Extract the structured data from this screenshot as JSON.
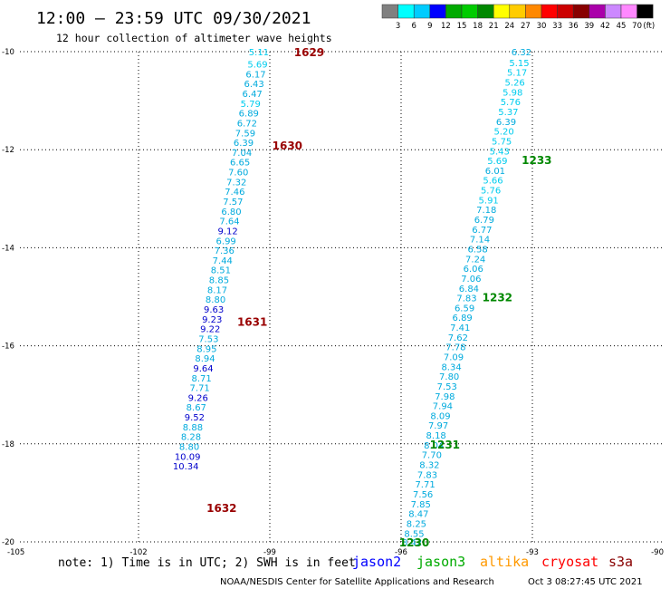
{
  "chart_data": {
    "type": "scatter",
    "title": "12:00 – 23:59 UTC 09/30/2021",
    "subtitle": "12 hour collection of altimeter wave heights",
    "xlim": [
      -105,
      -90
    ],
    "ylim": [
      -20,
      -10
    ],
    "x_ticks": [
      "-105",
      "-102",
      "-99",
      "-96",
      "-93",
      "-90"
    ],
    "y_ticks": [
      "-10",
      "-12",
      "-14",
      "-16",
      "-18",
      "-20"
    ],
    "grid": true,
    "colorbar": {
      "unit": "(ft)",
      "ticks": [
        "3",
        "6",
        "9",
        "12",
        "15",
        "18",
        "21",
        "24",
        "27",
        "30",
        "33",
        "36",
        "39",
        "42",
        "45",
        "70"
      ],
      "colors": [
        "#808080",
        "#00ffff",
        "#00ccff",
        "#0000ff",
        "#00aa00",
        "#00cc00",
        "#008800",
        "#ffff00",
        "#ffcc00",
        "#ff8800",
        "#ff0000",
        "#cc0000",
        "#880000",
        "#aa00aa",
        "#cc88ff",
        "#ff88ff",
        "#000000"
      ]
    },
    "series": [
      {
        "name": "cryosat",
        "color": "#00aadd",
        "points": [
          {
            "x": -99.25,
            "y": -10.0,
            "value": "5.11"
          },
          {
            "x": -99.28,
            "y": -10.25,
            "value": "5.69"
          },
          {
            "x": -99.32,
            "y": -10.45,
            "value": "6.17"
          },
          {
            "x": -99.36,
            "y": -10.65,
            "value": "6.43"
          },
          {
            "x": -99.4,
            "y": -10.85,
            "value": "6.47"
          },
          {
            "x": -99.44,
            "y": -11.05,
            "value": "5.79"
          },
          {
            "x": -99.48,
            "y": -11.25,
            "value": "6.89"
          },
          {
            "x": -99.52,
            "y": -11.45,
            "value": "6.72"
          },
          {
            "x": -99.56,
            "y": -11.65,
            "value": "7.59"
          },
          {
            "x": -99.6,
            "y": -11.85,
            "value": "6.39"
          },
          {
            "x": -99.64,
            "y": -12.05,
            "value": "7.04"
          },
          {
            "x": -99.68,
            "y": -12.25,
            "value": "6.65"
          },
          {
            "x": -99.72,
            "y": -12.45,
            "value": "7.60"
          },
          {
            "x": -99.76,
            "y": -12.65,
            "value": "7.32"
          },
          {
            "x": -99.8,
            "y": -12.85,
            "value": "7.46"
          },
          {
            "x": -99.84,
            "y": -13.05,
            "value": "7.57"
          },
          {
            "x": -99.88,
            "y": -13.25,
            "value": "6.80"
          },
          {
            "x": -99.92,
            "y": -13.45,
            "value": "7.64"
          },
          {
            "x": -99.96,
            "y": -13.65,
            "value": "9.12"
          },
          {
            "x": -100.0,
            "y": -13.85,
            "value": "6.99"
          },
          {
            "x": -100.04,
            "y": -14.05,
            "value": "7.36"
          },
          {
            "x": -100.08,
            "y": -14.25,
            "value": "7.44"
          },
          {
            "x": -100.12,
            "y": -14.45,
            "value": "8.51"
          },
          {
            "x": -100.16,
            "y": -14.65,
            "value": "8.85"
          },
          {
            "x": -100.2,
            "y": -14.85,
            "value": "8.17"
          },
          {
            "x": -100.24,
            "y": -15.05,
            "value": "8.80"
          },
          {
            "x": -100.28,
            "y": -15.25,
            "value": "9.63"
          },
          {
            "x": -100.32,
            "y": -15.45,
            "value": "9.23"
          },
          {
            "x": -100.36,
            "y": -15.65,
            "value": "9.22"
          },
          {
            "x": -100.4,
            "y": -15.85,
            "value": "7.53"
          },
          {
            "x": -100.44,
            "y": -16.05,
            "value": "8.95"
          },
          {
            "x": -100.48,
            "y": -16.25,
            "value": "8.94"
          },
          {
            "x": -100.52,
            "y": -16.45,
            "value": "9.64"
          },
          {
            "x": -100.56,
            "y": -16.65,
            "value": "8.71"
          },
          {
            "x": -100.6,
            "y": -16.85,
            "value": "7.71"
          },
          {
            "x": -100.64,
            "y": -17.05,
            "value": "9.26"
          },
          {
            "x": -100.68,
            "y": -17.25,
            "value": "8.67"
          },
          {
            "x": -100.72,
            "y": -17.45,
            "value": "9.52"
          },
          {
            "x": -100.76,
            "y": -17.65,
            "value": "8.88"
          },
          {
            "x": -100.8,
            "y": -17.85,
            "value": "8.28"
          },
          {
            "x": -100.84,
            "y": -18.05,
            "value": "8.80"
          },
          {
            "x": -100.88,
            "y": -18.25,
            "value": "10.09"
          },
          {
            "x": -100.92,
            "y": -18.45,
            "value": "10.34"
          }
        ],
        "time_labels": [
          {
            "x": -98.1,
            "y": -10.0,
            "label": "1629"
          },
          {
            "x": -98.6,
            "y": -11.9,
            "label": "1630"
          },
          {
            "x": -99.4,
            "y": -15.5,
            "label": "1631"
          },
          {
            "x": -100.1,
            "y": -19.3,
            "label": "1632"
          }
        ]
      },
      {
        "name": "jason3",
        "color": "#00aadd",
        "points": [
          {
            "x": -93.25,
            "y": -10.0,
            "value": "6.32"
          },
          {
            "x": -93.3,
            "y": -10.22,
            "value": "5.15"
          },
          {
            "x": -93.35,
            "y": -10.42,
            "value": "5.17"
          },
          {
            "x": -93.4,
            "y": -10.62,
            "value": "5.26"
          },
          {
            "x": -93.45,
            "y": -10.82,
            "value": "5.98"
          },
          {
            "x": -93.5,
            "y": -11.02,
            "value": "5.76"
          },
          {
            "x": -93.55,
            "y": -11.22,
            "value": "5.37"
          },
          {
            "x": -93.6,
            "y": -11.42,
            "value": "6.39"
          },
          {
            "x": -93.65,
            "y": -11.62,
            "value": "5.20"
          },
          {
            "x": -93.7,
            "y": -11.82,
            "value": "5.75"
          },
          {
            "x": -93.75,
            "y": -12.02,
            "value": "5.43"
          },
          {
            "x": -93.8,
            "y": -12.22,
            "value": "5.69"
          },
          {
            "x": -93.85,
            "y": -12.42,
            "value": "6.01"
          },
          {
            "x": -93.9,
            "y": -12.62,
            "value": "5.66"
          },
          {
            "x": -93.95,
            "y": -12.82,
            "value": "5.76"
          },
          {
            "x": -94.0,
            "y": -13.02,
            "value": "5.91"
          },
          {
            "x": -94.05,
            "y": -13.22,
            "value": "7.18"
          },
          {
            "x": -94.1,
            "y": -13.42,
            "value": "6.79"
          },
          {
            "x": -94.15,
            "y": -13.62,
            "value": "6.77"
          },
          {
            "x": -94.2,
            "y": -13.82,
            "value": "7.14"
          },
          {
            "x": -94.25,
            "y": -14.02,
            "value": "6.58"
          },
          {
            "x": -94.3,
            "y": -14.22,
            "value": "7.24"
          },
          {
            "x": -94.35,
            "y": -14.42,
            "value": "6.06"
          },
          {
            "x": -94.4,
            "y": -14.62,
            "value": "7.06"
          },
          {
            "x": -94.45,
            "y": -14.82,
            "value": "6.84"
          },
          {
            "x": -94.5,
            "y": -15.02,
            "value": "7.83"
          },
          {
            "x": -94.55,
            "y": -15.22,
            "value": "6.59"
          },
          {
            "x": -94.6,
            "y": -15.42,
            "value": "6.89"
          },
          {
            "x": -94.65,
            "y": -15.62,
            "value": "7.41"
          },
          {
            "x": -94.7,
            "y": -15.82,
            "value": "7.62"
          },
          {
            "x": -94.75,
            "y": -16.02,
            "value": "7.78"
          },
          {
            "x": -94.8,
            "y": -16.22,
            "value": "7.09"
          },
          {
            "x": -94.85,
            "y": -16.42,
            "value": "8.34"
          },
          {
            "x": -94.9,
            "y": -16.62,
            "value": "7.80"
          },
          {
            "x": -94.95,
            "y": -16.82,
            "value": "7.53"
          },
          {
            "x": -95.0,
            "y": -17.02,
            "value": "7.98"
          },
          {
            "x": -95.05,
            "y": -17.22,
            "value": "7.94"
          },
          {
            "x": -95.1,
            "y": -17.42,
            "value": "8.09"
          },
          {
            "x": -95.15,
            "y": -17.62,
            "value": "7.97"
          },
          {
            "x": -95.2,
            "y": -17.82,
            "value": "8.18"
          },
          {
            "x": -95.25,
            "y": -18.02,
            "value": "8.04"
          },
          {
            "x": -95.3,
            "y": -18.22,
            "value": "7.70"
          },
          {
            "x": -95.35,
            "y": -18.42,
            "value": "8.32"
          },
          {
            "x": -95.4,
            "y": -18.62,
            "value": "7.83"
          },
          {
            "x": -95.45,
            "y": -18.82,
            "value": "7.71"
          },
          {
            "x": -95.5,
            "y": -19.02,
            "value": "7.56"
          },
          {
            "x": -95.55,
            "y": -19.22,
            "value": "7.85"
          },
          {
            "x": -95.6,
            "y": -19.42,
            "value": "8.47"
          },
          {
            "x": -95.65,
            "y": -19.62,
            "value": "8.25"
          },
          {
            "x": -95.7,
            "y": -19.82,
            "value": "8.55"
          },
          {
            "x": -95.75,
            "y": -20.0,
            "value": "8.42"
          }
        ],
        "time_labels": [
          {
            "x": -92.9,
            "y": -12.2,
            "label": "1233"
          },
          {
            "x": -93.8,
            "y": -15.0,
            "label": "1232"
          },
          {
            "x": -95.0,
            "y": -18.0,
            "label": "1231"
          },
          {
            "x": -95.7,
            "y": -20.0,
            "label": "1230"
          }
        ]
      }
    ]
  },
  "footer": {
    "note": "note:  1) Time is in UTC;  2) SWH is in feet",
    "credit": "NOAA/NESDIS Center for Satellite Applications and Research",
    "timestamp": "Oct  3 08:27:45 UTC 2021",
    "legend": [
      {
        "label": "jason2",
        "color": "#0000ff"
      },
      {
        "label": "jason3",
        "color": "#00aa00"
      },
      {
        "label": "altika",
        "color": "#ff9900"
      },
      {
        "label": "cryosat",
        "color": "#ff0000"
      },
      {
        "label": "s3a",
        "color": "#880000"
      }
    ]
  }
}
